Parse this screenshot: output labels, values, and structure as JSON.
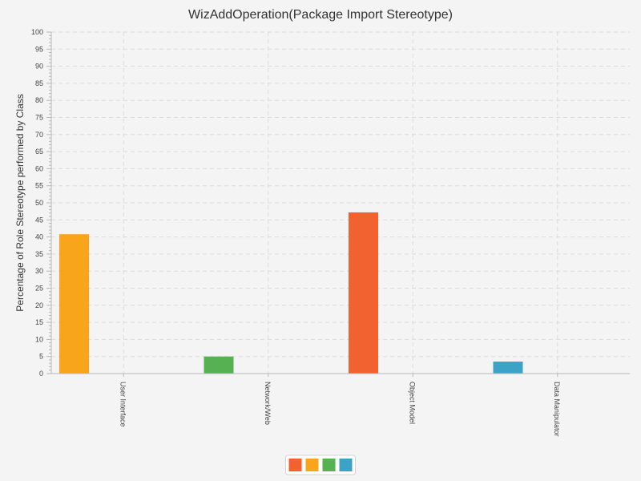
{
  "chart_data": {
    "type": "bar",
    "title": "WizAddOperation(Package Import Stereotype)",
    "ylabel": "Percentage of Role Stereotype performed by Class",
    "xlabel": "",
    "ylim": [
      0,
      100
    ],
    "y_major_step": 5,
    "y_minor_step": 1,
    "grid": true,
    "legend_position": "bottom-center",
    "categories": [
      "User Interface",
      "Network/Web",
      "Object Model",
      "Data Manipulator"
    ],
    "series": [
      {
        "color": "#f26130",
        "values": [
          0,
          0,
          47.2,
          0
        ]
      },
      {
        "color": "#f9a51c",
        "values": [
          40.8,
          0,
          0,
          0
        ]
      },
      {
        "color": "#56b152",
        "values": [
          0,
          5.0,
          0,
          0
        ]
      },
      {
        "color": "#3aa3c6",
        "values": [
          0,
          0,
          0,
          3.5
        ]
      }
    ]
  }
}
